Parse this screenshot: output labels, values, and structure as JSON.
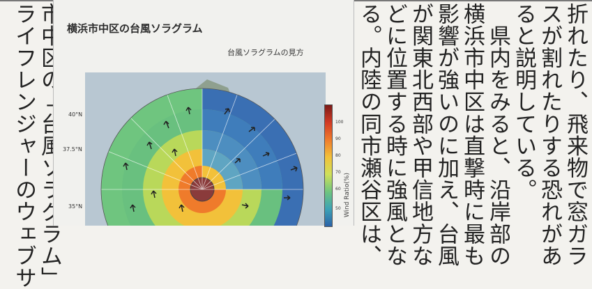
{
  "article": {
    "left_columns": [
      "ライフレンジャーのウェブサ",
      "市中区の「台風ソラグラム」"
    ],
    "right_columns": [
      "る。内陸の同市瀬谷区は、",
      "どに位置する時に強風とな",
      "が関東北西部や甲信地方な",
      "影響が強いのに加え、台風",
      "横浜市中区は直撃時に最も",
      "　県内をみると、沿岸部の",
      "ると説明している。",
      "スが割れたりする恐れがあ",
      "折れたり、飛来物で窓ガラ"
    ]
  },
  "figure": {
    "title": "横浜市中区の台風ソラグラム",
    "subtitle": "台風ソラグラムの見方",
    "lat_labels": [
      "40°N",
      "37.5°N",
      "35°N"
    ],
    "colorbar_ticks": [
      "100",
      "90",
      "80",
      "70",
      "60",
      "50"
    ],
    "colorbar_label": "Wind Ratio(%)"
  },
  "colors": {
    "land": "#8fa08f",
    "sea": "#b8c7d2",
    "hot": "#d23a25",
    "mid": "#f2c13a",
    "cool": "#6fc57f",
    "cold": "#2a62a8"
  }
}
